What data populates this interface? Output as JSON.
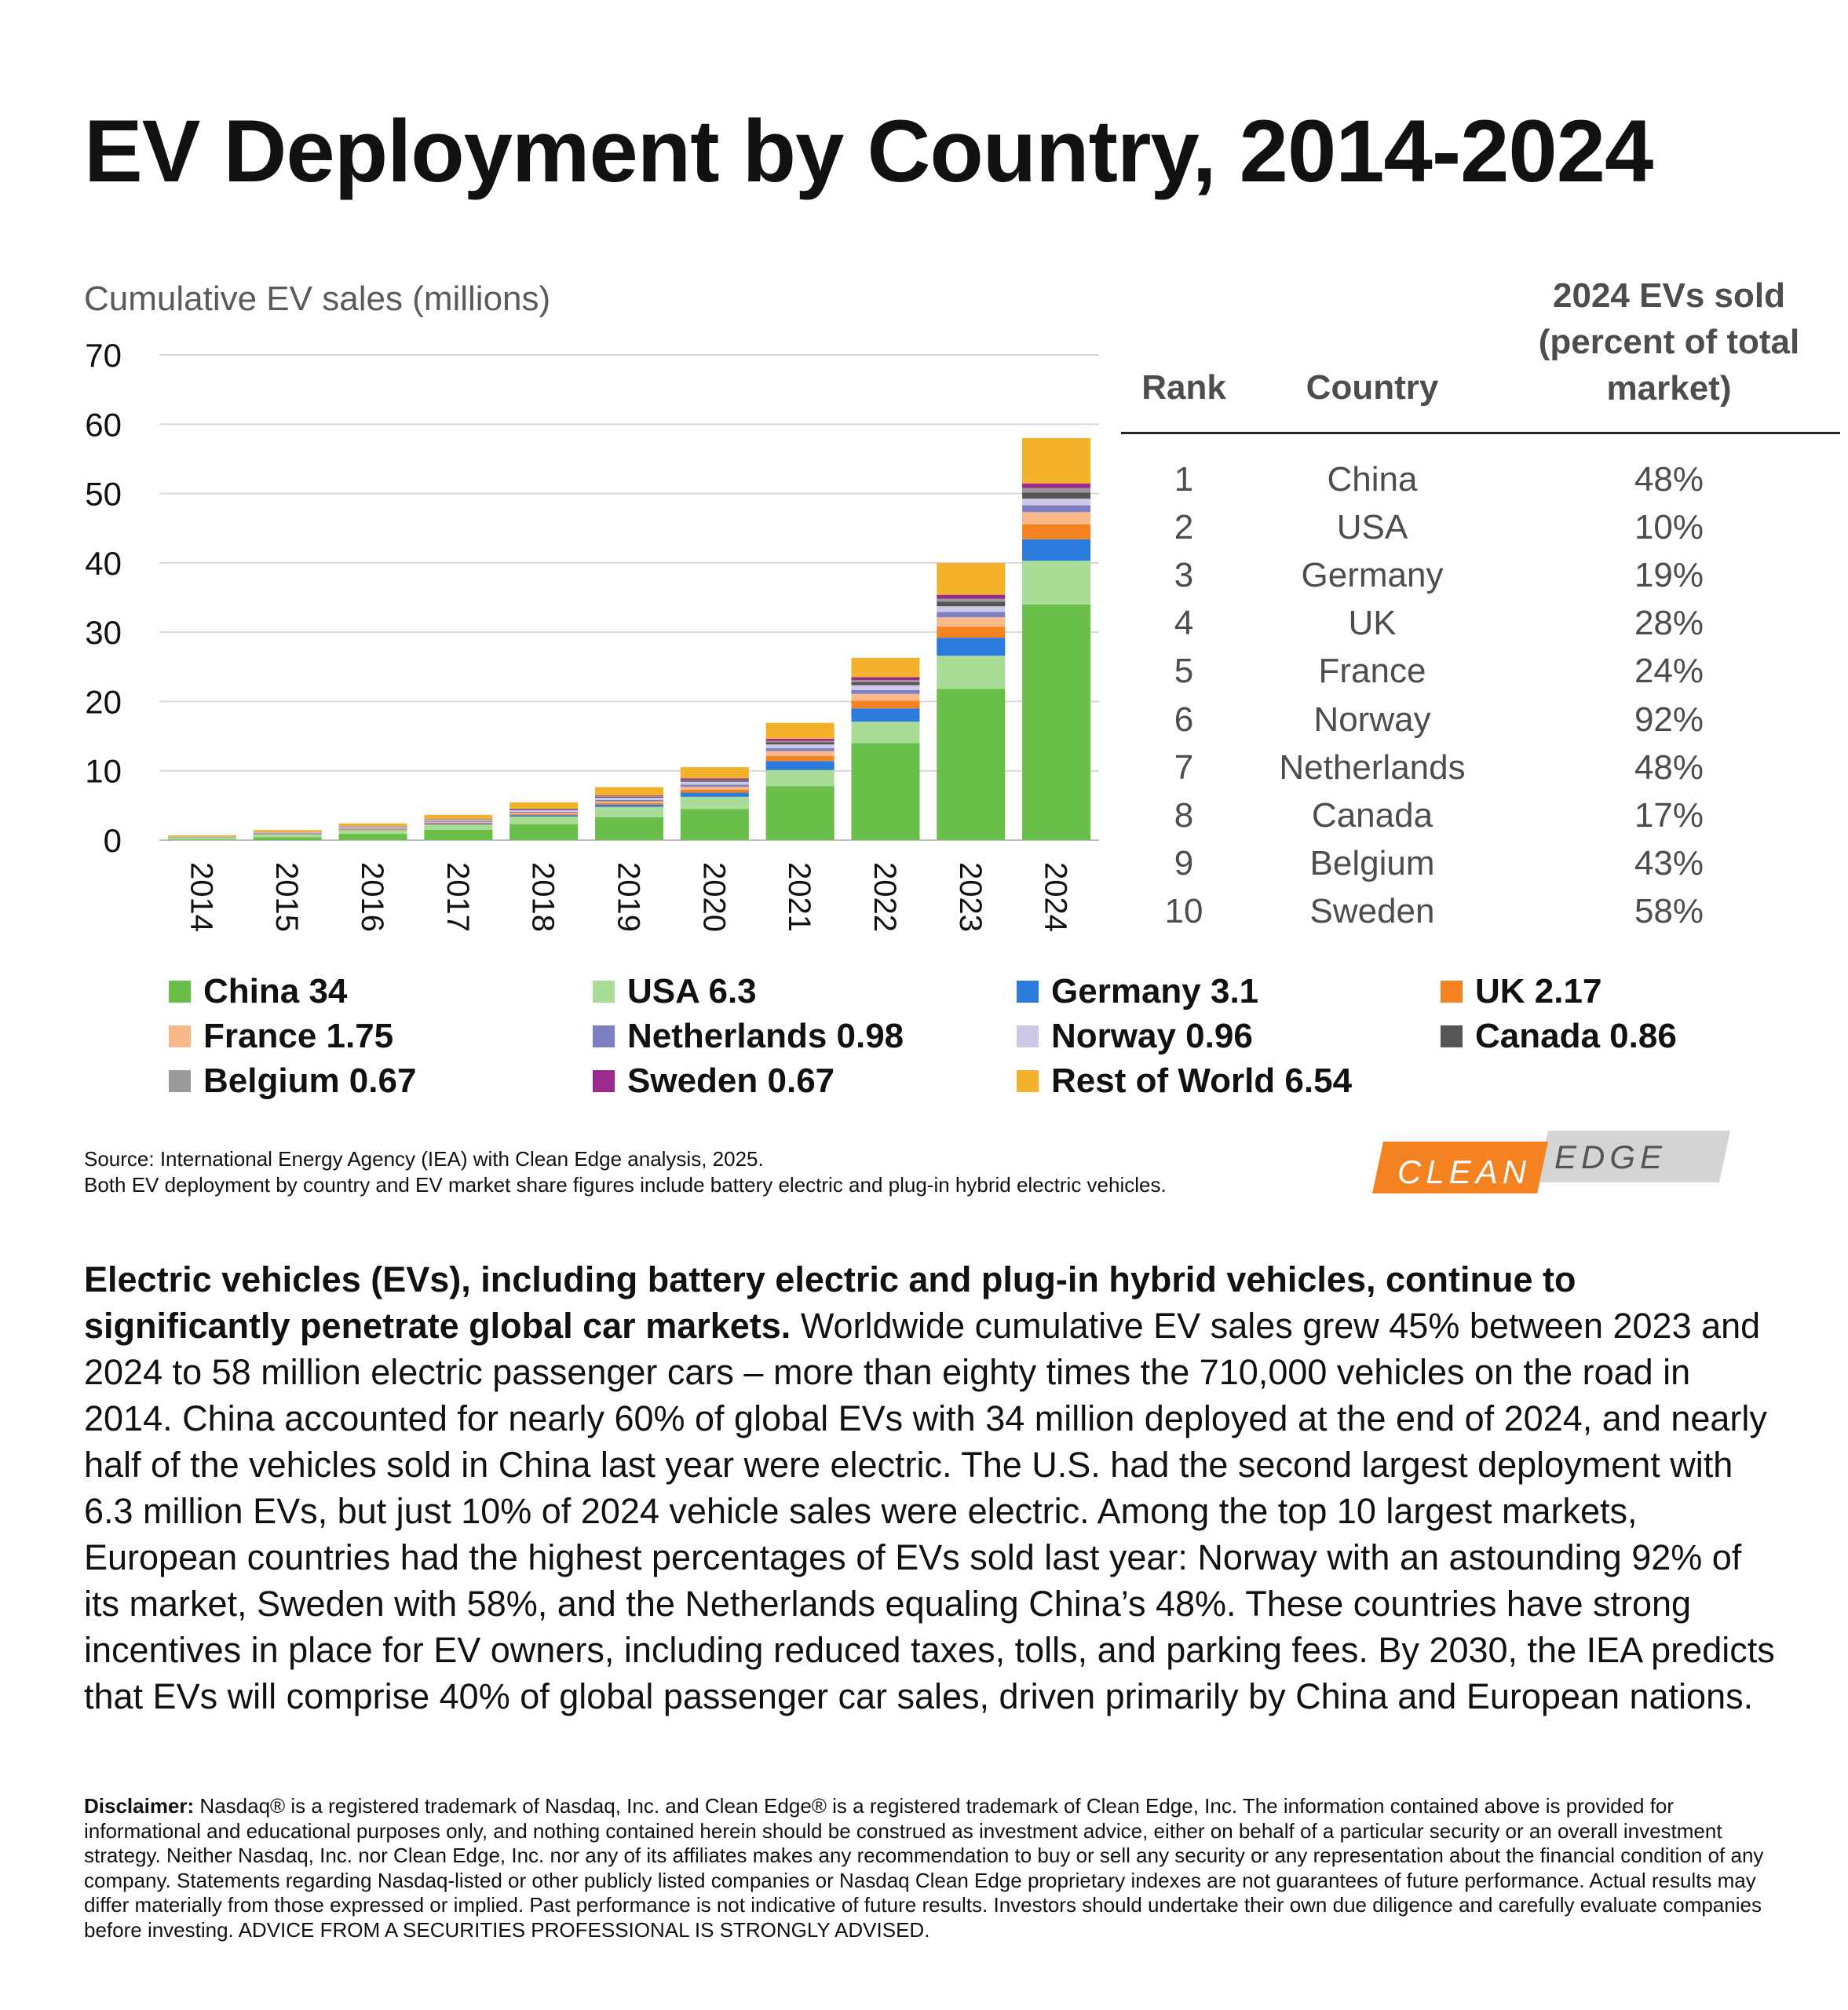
{
  "title": "EV Deployment by Country, 2014-2024",
  "chart_data": {
    "type": "bar",
    "stacked": true,
    "ylabel": "Cumulative EV sales (millions)",
    "ylim": [
      0,
      70
    ],
    "yticks": [
      "0",
      "10",
      "20",
      "30",
      "40",
      "50",
      "60",
      "70"
    ],
    "grid": true,
    "categories": [
      "2014",
      "2015",
      "2016",
      "2017",
      "2018",
      "2019",
      "2020",
      "2021",
      "2022",
      "2023",
      "2024"
    ],
    "series": [
      {
        "name": "China",
        "color": "#6abf4b",
        "values": [
          0.1,
          0.4,
          0.9,
          1.5,
          2.3,
          3.3,
          4.5,
          7.8,
          14.0,
          21.8,
          34.0
        ]
      },
      {
        "name": "USA",
        "color": "#a8dc97",
        "values": [
          0.25,
          0.4,
          0.55,
          0.75,
          1.1,
          1.5,
          1.75,
          2.3,
          3.1,
          4.8,
          6.3
        ]
      },
      {
        "name": "Germany",
        "color": "#2b7bdc",
        "values": [
          0.02,
          0.04,
          0.06,
          0.12,
          0.19,
          0.3,
          0.6,
          1.3,
          1.9,
          2.6,
          3.1
        ]
      },
      {
        "name": "UK",
        "color": "#f58220",
        "values": [
          0.02,
          0.05,
          0.09,
          0.13,
          0.19,
          0.26,
          0.44,
          0.75,
          1.1,
          1.6,
          2.17
        ]
      },
      {
        "name": "France",
        "color": "#f9b98a",
        "values": [
          0.02,
          0.05,
          0.08,
          0.11,
          0.16,
          0.22,
          0.4,
          0.7,
          1.0,
          1.35,
          1.75
        ]
      },
      {
        "name": "Netherlands",
        "color": "#7f7fc4",
        "values": [
          0.04,
          0.09,
          0.12,
          0.13,
          0.15,
          0.22,
          0.3,
          0.4,
          0.55,
          0.75,
          0.98
        ]
      },
      {
        "name": "Norway",
        "color": "#ccc8e6",
        "values": [
          0.04,
          0.08,
          0.12,
          0.17,
          0.24,
          0.32,
          0.43,
          0.56,
          0.7,
          0.83,
          0.96
        ]
      },
      {
        "name": "Canada",
        "color": "#555555",
        "values": [
          0.01,
          0.02,
          0.03,
          0.05,
          0.09,
          0.14,
          0.2,
          0.3,
          0.45,
          0.65,
          0.86
        ]
      },
      {
        "name": "Belgium",
        "color": "#999999",
        "values": [
          0.01,
          0.01,
          0.02,
          0.03,
          0.04,
          0.06,
          0.1,
          0.2,
          0.3,
          0.45,
          0.67
        ]
      },
      {
        "name": "Sweden",
        "color": "#9b2a8c",
        "values": [
          0.01,
          0.02,
          0.03,
          0.05,
          0.08,
          0.12,
          0.2,
          0.3,
          0.4,
          0.55,
          0.67
        ]
      },
      {
        "name": "Rest of World",
        "color": "#f4b22c",
        "values": [
          0.18,
          0.3,
          0.4,
          0.6,
          0.9,
          1.2,
          1.6,
          2.3,
          2.8,
          4.6,
          6.54
        ]
      }
    ]
  },
  "table": {
    "headers": {
      "rank": "Rank",
      "country": "Country",
      "pct_lines": [
        "2024 EVs sold",
        "(percent of total",
        "market)"
      ]
    },
    "rows": [
      {
        "rank": "1",
        "country": "China",
        "pct": "48%"
      },
      {
        "rank": "2",
        "country": "USA",
        "pct": "10%"
      },
      {
        "rank": "3",
        "country": "Germany",
        "pct": "19%"
      },
      {
        "rank": "4",
        "country": "UK",
        "pct": "28%"
      },
      {
        "rank": "5",
        "country": "France",
        "pct": "24%"
      },
      {
        "rank": "6",
        "country": "Norway",
        "pct": "92%"
      },
      {
        "rank": "7",
        "country": "Netherlands",
        "pct": "48%"
      },
      {
        "rank": "8",
        "country": "Canada",
        "pct": "17%"
      },
      {
        "rank": "9",
        "country": "Belgium",
        "pct": "43%"
      },
      {
        "rank": "10",
        "country": "Sweden",
        "pct": "58%"
      }
    ]
  },
  "legend": [
    {
      "label": "China 34",
      "color": "#6abf4b"
    },
    {
      "label": "USA 6.3",
      "color": "#a8dc97"
    },
    {
      "label": "Germany 3.1",
      "color": "#2b7bdc"
    },
    {
      "label": "UK 2.17",
      "color": "#f58220"
    },
    {
      "label": "France 1.75",
      "color": "#f9b98a"
    },
    {
      "label": "Netherlands 0.98",
      "color": "#7f7fc4"
    },
    {
      "label": "Norway 0.96",
      "color": "#ccc8e6"
    },
    {
      "label": "Canada 0.86",
      "color": "#555555"
    },
    {
      "label": "Belgium 0.67",
      "color": "#999999"
    },
    {
      "label": "Sweden 0.67",
      "color": "#9b2a8c"
    },
    {
      "label": "Rest of World 6.54",
      "color": "#f4b22c"
    }
  ],
  "source": {
    "line1": "Source: International Energy Agency (IEA) with Clean Edge analysis, 2025.",
    "line2": "Both EV deployment by country and EV market share figures include battery electric and plug-in hybrid electric vehicles."
  },
  "logo": {
    "clean": "CLEAN",
    "edge": "EDGE",
    "orange": "#f58220",
    "gray": "#d4d4d4"
  },
  "paragraph": {
    "bold": "Electric vehicles (EVs), including battery electric and plug-in hybrid vehicles, continue to significantly penetrate global car markets.",
    "text": " Worldwide cumulative EV sales grew 45% between 2023 and 2024 to 58 million electric passenger cars – more than eighty times the 710,000 vehicles on the road in 2014. China accounted for nearly 60% of global EVs with 34 million deployed at the end of 2024, and nearly half of the vehicles sold in China last year were electric. The U.S. had the second largest deployment with 6.3 million EVs, but just 10% of 2024 vehicle sales were electric. Among the top 10 largest markets, European countries had the highest percentages of EVs sold last year: Norway with an astounding 92% of its market, Sweden with 58%, and the Netherlands equaling China’s 48%. These countries have strong incentives in place for EV owners, including reduced taxes, tolls, and parking fees. By 2030, the IEA predicts that EVs will comprise 40% of global passenger car sales, driven primarily by China and European nations."
  },
  "disclaimer": {
    "bold": "Disclaimer:",
    "text": " Nasdaq® is a registered trademark of Nasdaq, Inc. and Clean Edge® is a registered trademark of Clean Edge, Inc. The information contained above is provided for informational and educational purposes only, and nothing contained herein should be construed as investment advice, either on behalf of a particular security or an overall investment strategy. Neither Nasdaq, Inc. nor Clean Edge, Inc. nor any of its affiliates makes any recommendation to buy or sell any security or any representation about the financial condition of any company. Statements regarding Nasdaq-listed or other publicly listed companies or Nasdaq Clean Edge proprietary indexes are not guarantees of future performance. Actual results may differ materially from those expressed or implied. Past performance is not indicative of future results. Investors should undertake their own due diligence and carefully evaluate companies before investing.  ADVICE FROM A SECURITIES PROFESSIONAL IS STRONGLY ADVISED."
  }
}
